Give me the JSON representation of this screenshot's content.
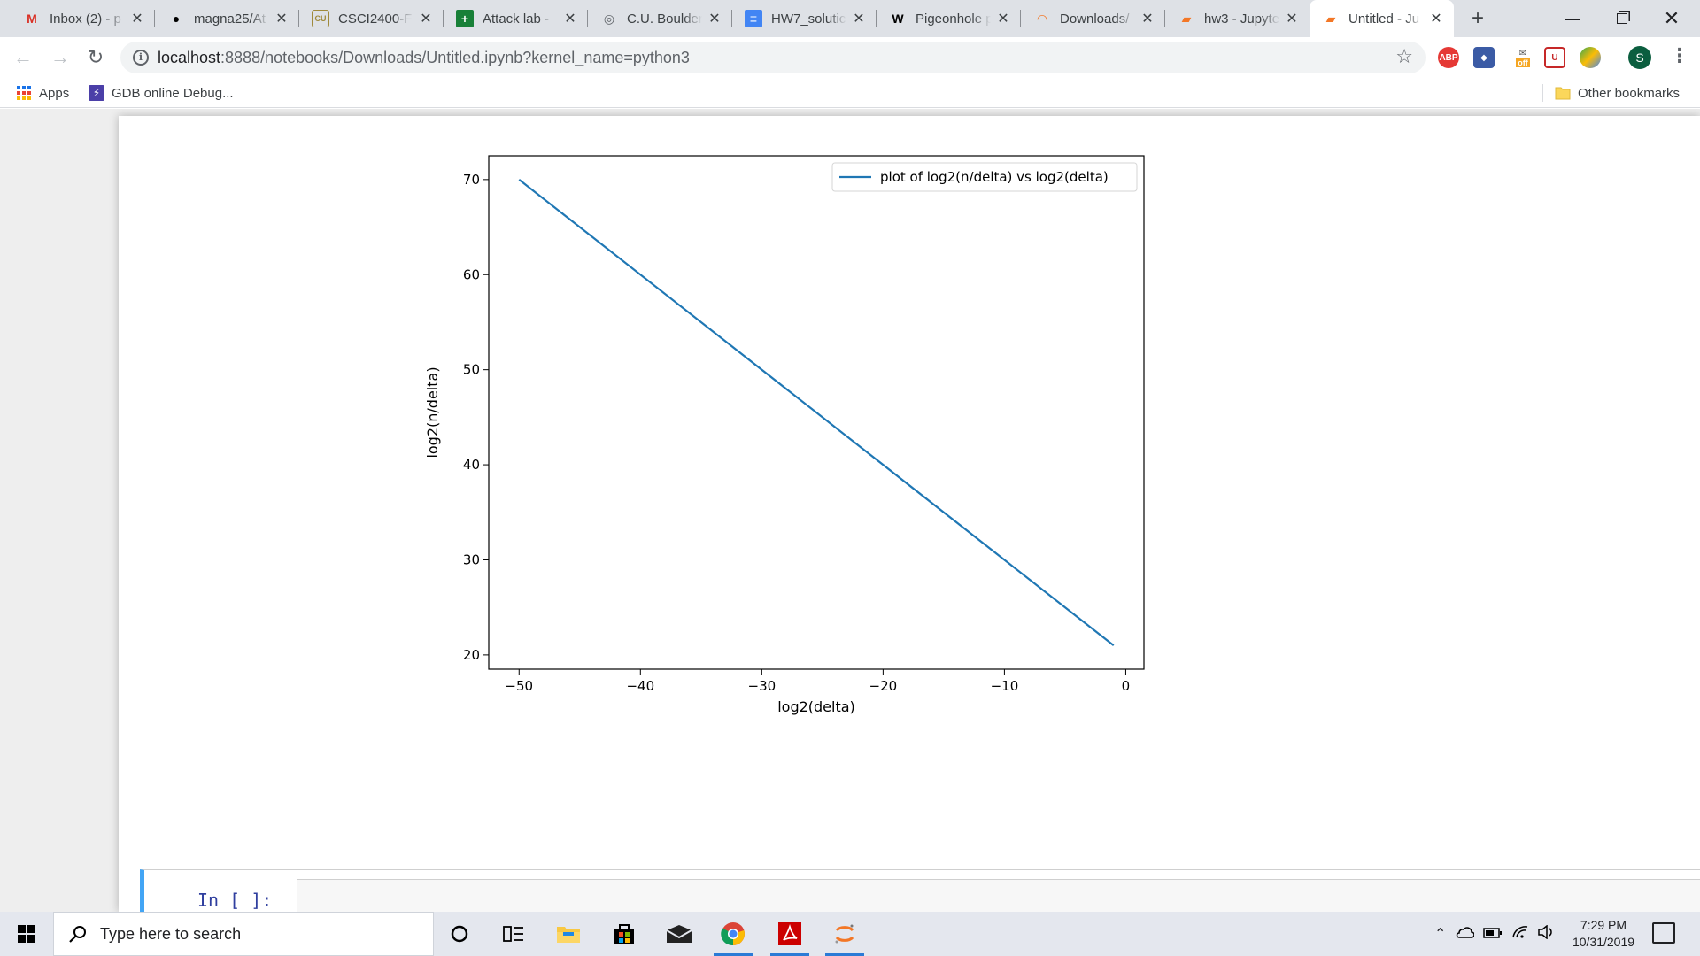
{
  "browser": {
    "tabs": [
      {
        "title": "Inbox (2) - p",
        "icon": "gmail-icon",
        "glyph": "M",
        "color": "#d93025"
      },
      {
        "title": "magna25/At",
        "icon": "github-icon",
        "glyph": "●",
        "color": "#000000"
      },
      {
        "title": "CSCI2400-Fa",
        "icon": "cu-logo-icon",
        "glyph": "CU",
        "color": "#a08a3c"
      },
      {
        "title": "Attack lab - ",
        "icon": "sheets-icon",
        "glyph": "+",
        "color": "#188038"
      },
      {
        "title": "C.U. Boulder",
        "icon": "globe-icon",
        "glyph": "◎",
        "color": "#5f6368"
      },
      {
        "title": "HW7_solutic",
        "icon": "docs-icon",
        "glyph": "≡",
        "color": "#4285f4"
      },
      {
        "title": "Pigeonhole p",
        "icon": "wikipedia-icon",
        "glyph": "W",
        "color": "#000000"
      },
      {
        "title": "Downloads/",
        "icon": "jupyter-icon",
        "glyph": "◠",
        "color": "#f37726"
      },
      {
        "title": "hw3 - Jupyte",
        "icon": "notebook-icon",
        "glyph": "▰",
        "color": "#f37726"
      },
      {
        "title": "Untitled - Ju",
        "icon": "notebook-icon",
        "glyph": "▰",
        "color": "#f37726"
      }
    ],
    "active_tab": 9,
    "url_host": "localhost",
    "url_rest": ":8888/notebooks/Downloads/Untitled.ipynb?kernel_name=python3",
    "bookmarks": {
      "apps": "Apps",
      "gdb": "GDB online Debug...",
      "other": "Other bookmarks"
    },
    "profile_initial": "S",
    "ext_off_label": "off"
  },
  "notebook": {
    "prompt": "In [ ]:"
  },
  "taskbar": {
    "search_placeholder": "Type here to search",
    "time": "7:29 PM",
    "date": "10/31/2019"
  },
  "colors": {
    "line": "#1f77b4",
    "cell_accent": "#42a5f5"
  },
  "chart_data": {
    "type": "line",
    "series": [
      {
        "name": "plot of log2(n/delta) vs log2(delta)",
        "x": [
          -50,
          -1
        ],
        "y": [
          70,
          21
        ]
      }
    ],
    "xlabel": "log2(delta)",
    "ylabel": "log2(n/delta)",
    "xlim": [
      -52.5,
      1.5
    ],
    "ylim": [
      18.5,
      72.5
    ],
    "xticks": [
      -50,
      -40,
      -30,
      -20,
      -10,
      0
    ],
    "xtick_labels": [
      "−50",
      "−40",
      "−30",
      "−20",
      "−10",
      "0"
    ],
    "yticks": [
      20,
      30,
      40,
      50,
      60,
      70
    ],
    "ytick_labels": [
      "20",
      "30",
      "40",
      "50",
      "60",
      "70"
    ],
    "grid": false,
    "legend": "upper right"
  }
}
